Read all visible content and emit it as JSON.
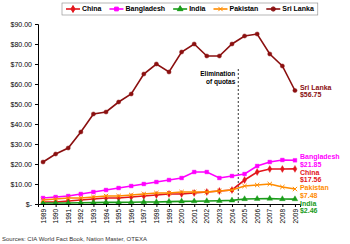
{
  "chart_data": {
    "type": "line",
    "categories": [
      "1989",
      "1990",
      "1991",
      "1992",
      "1993",
      "1994",
      "1995",
      "1996",
      "1997",
      "1998",
      "1999",
      "2000",
      "2001",
      "2002",
      "2003",
      "2004",
      "2005",
      "2006",
      "2007",
      "2008",
      "2009"
    ],
    "series": [
      {
        "name": "China",
        "color": "#e3161c",
        "marker": "diamond",
        "values": [
          1,
          1,
          1.5,
          2,
          2.5,
          3,
          3,
          3.5,
          4,
          4.5,
          5,
          5,
          5.5,
          6,
          6.5,
          7,
          12,
          16,
          17.5,
          17.5,
          17.56
        ],
        "value_labels": [
          null,
          null,
          null,
          null,
          null,
          null,
          null,
          null,
          null,
          null,
          null,
          null,
          null,
          null,
          null,
          null,
          null,
          null,
          null,
          null,
          "$17.56"
        ]
      },
      {
        "name": "Bangladesh",
        "color": "#ff00ff",
        "marker": "square",
        "values": [
          3,
          3.5,
          4,
          5,
          6,
          7,
          8,
          9,
          10,
          11,
          12,
          13,
          16,
          16,
          13,
          14,
          15,
          19,
          21,
          22,
          21.85
        ],
        "value_labels": [
          null,
          null,
          null,
          null,
          null,
          null,
          null,
          null,
          null,
          null,
          null,
          null,
          null,
          null,
          null,
          null,
          null,
          null,
          null,
          null,
          "$21.85"
        ]
      },
      {
        "name": "India",
        "color": "#1a9c1a",
        "marker": "triangle",
        "values": [
          0.5,
          0.5,
          0.5,
          0.6,
          0.7,
          0.8,
          0.8,
          0.9,
          1,
          1,
          1.2,
          1.3,
          1.4,
          1.5,
          1.6,
          1.8,
          2.5,
          2.6,
          2.7,
          2.5,
          2.46
        ],
        "value_labels": [
          null,
          null,
          null,
          null,
          null,
          null,
          null,
          null,
          null,
          null,
          null,
          null,
          null,
          null,
          null,
          null,
          null,
          null,
          null,
          null,
          "$2.46"
        ]
      },
      {
        "name": "Pakistan",
        "color": "#ff8c00",
        "marker": "x",
        "values": [
          2,
          2.5,
          3,
          3,
          3.5,
          4,
          4,
          4.5,
          5,
          5.5,
          5.5,
          6,
          6,
          6,
          6.5,
          7,
          9,
          9.5,
          10,
          8.5,
          7.48
        ],
        "value_labels": [
          null,
          null,
          null,
          null,
          null,
          null,
          null,
          null,
          null,
          null,
          null,
          null,
          null,
          null,
          null,
          null,
          null,
          null,
          null,
          null,
          "$7.48"
        ]
      },
      {
        "name": "Sri Lanka",
        "color": "#8b1010",
        "marker": "circle",
        "values": [
          21,
          25,
          28,
          36,
          45,
          46,
          51,
          55,
          65,
          70,
          66,
          76,
          80,
          74,
          74,
          80,
          84,
          85,
          75,
          69,
          56.75
        ],
        "value_labels": [
          null,
          null,
          null,
          null,
          null,
          null,
          null,
          null,
          null,
          null,
          null,
          null,
          null,
          null,
          null,
          null,
          null,
          null,
          null,
          null,
          "$56.75"
        ]
      }
    ],
    "ylim": [
      0,
      90
    ],
    "yticks": [
      {
        "value": 0,
        "label": "$-"
      },
      {
        "value": 10,
        "label": "$10.00"
      },
      {
        "value": 20,
        "label": "$20.00"
      },
      {
        "value": 30,
        "label": "$30.00"
      },
      {
        "value": 40,
        "label": "$40.00"
      },
      {
        "value": 50,
        "label": "$50.00"
      },
      {
        "value": 60,
        "label": "$60.00"
      },
      {
        "value": 70,
        "label": "$70.00"
      },
      {
        "value": 80,
        "label": "$80.00"
      },
      {
        "value": 90,
        "label": "$90.00"
      }
    ],
    "annotations": [
      "Elimination of quotas"
    ],
    "source": "Sources: CIA World Fact Book, Nation Master, OTEXA",
    "grid": false,
    "legend": "top",
    "data_labels": true
  }
}
